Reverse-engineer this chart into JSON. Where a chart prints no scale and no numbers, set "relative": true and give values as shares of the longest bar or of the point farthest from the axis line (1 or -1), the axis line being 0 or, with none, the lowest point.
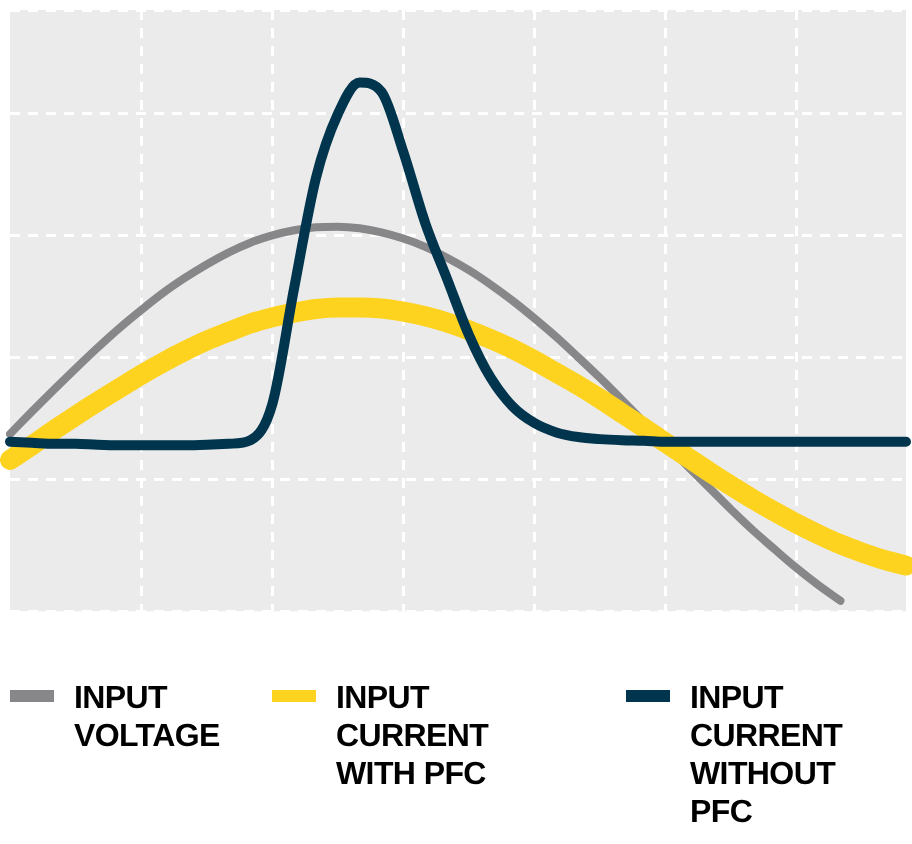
{
  "chart_data": {
    "type": "line",
    "relative": true,
    "grid": true,
    "legend": "bottom",
    "marker": "none",
    "line_style": "solid",
    "categories": [
      null,
      null,
      null,
      null,
      null,
      null,
      null,
      null,
      null,
      null,
      null,
      null,
      null,
      null,
      null,
      null,
      null,
      null,
      null,
      null,
      null,
      null,
      null,
      null,
      null,
      null,
      null,
      null,
      null,
      null,
      null,
      null,
      null,
      null,
      null,
      null,
      null,
      null,
      null,
      null,
      null,
      null
    ],
    "series": [
      {
        "name": "INPUT VOLTAGE",
        "color": "#87878a",
        "values": [
          0.322,
          0.365,
          0.407,
          0.448,
          0.488,
          0.526,
          0.561,
          0.594,
          0.623,
          0.649,
          0.672,
          0.691,
          0.705,
          0.715,
          0.721,
          0.722,
          0.719,
          0.711,
          0.699,
          0.683,
          0.662,
          0.638,
          0.61,
          0.579,
          0.545,
          0.509,
          0.47,
          0.43,
          0.388,
          0.345,
          0.303,
          0.26,
          0.218,
          0.176,
          0.136,
          0.099,
          0.063,
          0.03,
          0,
          null,
          null,
          null
        ]
      },
      {
        "name": "INPUT CURRENT WITH PFC",
        "color": "#fdd320",
        "values": [
          0.272,
          0.3,
          0.329,
          0.357,
          0.384,
          0.41,
          0.436,
          0.46,
          0.482,
          0.502,
          0.519,
          0.535,
          0.547,
          0.556,
          0.563,
          0.566,
          0.566,
          0.564,
          0.558,
          0.549,
          0.537,
          0.522,
          0.505,
          0.486,
          0.464,
          0.44,
          0.416,
          0.39,
          0.362,
          0.334,
          0.305,
          0.277,
          0.249,
          0.222,
          0.196,
          0.172,
          0.149,
          0.128,
          0.109,
          0.093,
          0.079,
          0.068
        ]
      },
      {
        "name": "INPUT CURRENT WITHOUT PFC",
        "color": "#00354d",
        "values": [
          0.307,
          0.305,
          0.303,
          0.303,
          0.301,
          0.3,
          0.3,
          0.3,
          0.3,
          0.301,
          0.303,
          0.31,
          0.379,
          0.603,
          0.816,
          0.939,
          1,
          0.982,
          0.866,
          0.729,
          0.621,
          0.513,
          0.43,
          0.375,
          0.343,
          0.325,
          0.316,
          0.312,
          0.31,
          0.309,
          0.307,
          0.307,
          0.307,
          0.307,
          0.307,
          0.307,
          0.307,
          0.307,
          0.307,
          0.307,
          0.307,
          0.307
        ]
      }
    ]
  }
}
